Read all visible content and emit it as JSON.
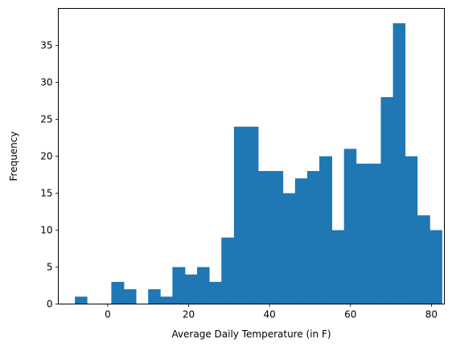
{
  "chart_data": {
    "type": "bar",
    "title": "",
    "xlabel": "Average Daily Temperature (in F)",
    "ylabel": "Frequency",
    "xlim": [
      -12.2,
      83.2
    ],
    "ylim": [
      0,
      40
    ],
    "xticks": [
      0,
      20,
      40,
      60,
      80
    ],
    "yticks": [
      0,
      5,
      10,
      15,
      20,
      25,
      30,
      35
    ],
    "grid": false,
    "bar_color": "#1f77b4",
    "bins": [
      {
        "x0": -8.1,
        "x1": -5.1,
        "count": 1
      },
      {
        "x0": -5.1,
        "x1": -2.1,
        "count": 0
      },
      {
        "x0": -2.1,
        "x1": 0.9,
        "count": 0
      },
      {
        "x0": 0.9,
        "x1": 4.0,
        "count": 3
      },
      {
        "x0": 4.0,
        "x1": 7.0,
        "count": 2
      },
      {
        "x0": 7.0,
        "x1": 10.0,
        "count": 0
      },
      {
        "x0": 10.0,
        "x1": 13.0,
        "count": 2
      },
      {
        "x0": 13.0,
        "x1": 16.0,
        "count": 1
      },
      {
        "x0": 16.0,
        "x1": 19.1,
        "count": 5
      },
      {
        "x0": 19.1,
        "x1": 22.1,
        "count": 4
      },
      {
        "x0": 22.1,
        "x1": 25.1,
        "count": 5
      },
      {
        "x0": 25.1,
        "x1": 28.1,
        "count": 3
      },
      {
        "x0": 28.1,
        "x1": 31.2,
        "count": 9
      },
      {
        "x0": 31.2,
        "x1": 34.2,
        "count": 24
      },
      {
        "x0": 34.2,
        "x1": 37.2,
        "count": 24
      },
      {
        "x0": 37.2,
        "x1": 40.2,
        "count": 18
      },
      {
        "x0": 40.2,
        "x1": 43.3,
        "count": 18
      },
      {
        "x0": 43.3,
        "x1": 46.3,
        "count": 15
      },
      {
        "x0": 46.3,
        "x1": 49.3,
        "count": 17
      },
      {
        "x0": 49.3,
        "x1": 52.3,
        "count": 18
      },
      {
        "x0": 52.3,
        "x1": 55.4,
        "count": 20
      },
      {
        "x0": 55.4,
        "x1": 58.4,
        "count": 10
      },
      {
        "x0": 58.4,
        "x1": 61.4,
        "count": 21
      },
      {
        "x0": 61.4,
        "x1": 64.4,
        "count": 19
      },
      {
        "x0": 64.4,
        "x1": 67.5,
        "count": 19
      },
      {
        "x0": 67.5,
        "x1": 70.5,
        "count": 28
      },
      {
        "x0": 70.5,
        "x1": 73.5,
        "count": 38
      },
      {
        "x0": 73.5,
        "x1": 76.5,
        "count": 20
      },
      {
        "x0": 76.5,
        "x1": 79.6,
        "count": 12
      },
      {
        "x0": 79.6,
        "x1": 82.6,
        "count": 10
      }
    ]
  }
}
